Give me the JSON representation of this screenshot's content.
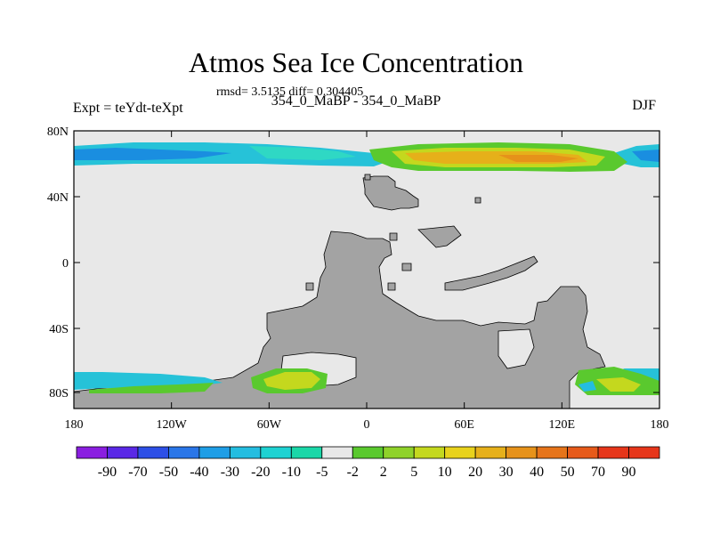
{
  "title": "Atmos Sea Ice Concentration",
  "stats": "rmsd= 3.5135 diff= 0.304405",
  "left_label": "Expt = teYdt-teXpt",
  "center_label": "354_0_MaBP - 354_0_MaBP",
  "right_label": "DJF",
  "axes": {
    "x_ticks": [
      "180",
      "120W",
      "60W",
      "0",
      "60E",
      "120E",
      "180"
    ],
    "y_ticks": [
      "80N",
      "40N",
      "0",
      "40S",
      "80S"
    ]
  },
  "colorbar": {
    "labels": [
      "-90",
      "-70",
      "-50",
      "-40",
      "-30",
      "-20",
      "-10",
      "-5",
      "-2",
      "2",
      "5",
      "10",
      "20",
      "30",
      "40",
      "50",
      "70",
      "90"
    ],
    "colors": [
      "#8a1ee0",
      "#5a28e6",
      "#2d4fe6",
      "#2a76e8",
      "#1f9ee6",
      "#24bde0",
      "#1ed2d2",
      "#1ad7a8",
      "#e8e8e8",
      "#5ac92e",
      "#8fd22a",
      "#c4d81e",
      "#e8d21c",
      "#e6b01a",
      "#e6921a",
      "#e6741a",
      "#e65a1a",
      "#e6361a"
    ]
  },
  "colors": {
    "land": "#a3a3a3",
    "ocean_nochange": "#e8e8e8",
    "frame": "#000000"
  }
}
